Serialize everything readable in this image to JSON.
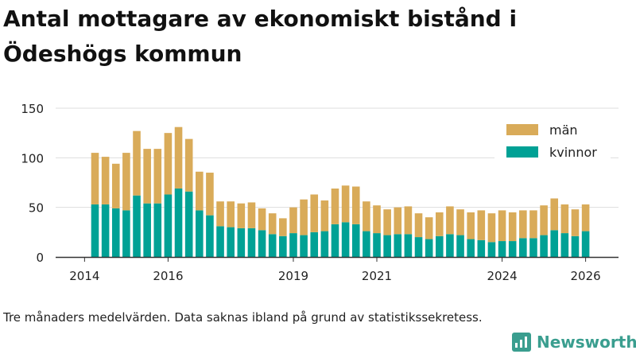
{
  "title": "Antal mottagare av ekonomiskt bistånd i Ödeshögs kommun",
  "caption": "Tre månaders medelvärden. Data saknas ibland på grund av statistikssekretess.",
  "brand": "Newsworthy",
  "colors": {
    "men": "#d9ab59",
    "women": "#00a195",
    "grid": "#dddddd",
    "axis": "#333333"
  },
  "chart_data": {
    "type": "bar",
    "stacked": true,
    "title": "Antal mottagare av ekonomiskt bistånd i Ödeshögs kommun",
    "xlabel": "",
    "ylabel": "",
    "ylim": [
      0,
      150
    ],
    "yticks": [
      0,
      50,
      100,
      150
    ],
    "xticks": [
      "2014",
      "2016",
      "2019",
      "2021",
      "2024",
      "2026"
    ],
    "legend_position": "top-right",
    "x": [
      "2014-04",
      "2014-07",
      "2014-10",
      "2015-01",
      "2015-04",
      "2015-07",
      "2015-10",
      "2016-01",
      "2016-04",
      "2016-07",
      "2016-10",
      "2017-01",
      "2017-04",
      "2017-07",
      "2017-10",
      "2018-01",
      "2018-04",
      "2018-07",
      "2018-10",
      "2019-01",
      "2019-04",
      "2019-07",
      "2019-10",
      "2020-01",
      "2020-04",
      "2020-07",
      "2020-10",
      "2021-01",
      "2021-04",
      "2021-07",
      "2021-10",
      "2022-01",
      "2022-04",
      "2022-07",
      "2022-10",
      "2023-01",
      "2023-04",
      "2023-07",
      "2023-10",
      "2024-01",
      "2024-04",
      "2024-07",
      "2024-10",
      "2025-01",
      "2025-04",
      "2025-07",
      "2025-10",
      "2026-01"
    ],
    "series": [
      {
        "name": "kvinnor",
        "values": [
          53,
          53,
          49,
          47,
          62,
          54,
          54,
          63,
          69,
          66,
          47,
          42,
          31,
          30,
          29,
          29,
          27,
          23,
          21,
          24,
          22,
          25,
          26,
          33,
          35,
          33,
          26,
          24,
          22,
          23,
          23,
          20,
          18,
          21,
          23,
          22,
          18,
          17,
          15,
          16,
          16,
          19,
          19,
          22,
          27,
          24,
          21,
          26
        ]
      },
      {
        "name": "män",
        "values": [
          52,
          48,
          45,
          58,
          65,
          55,
          55,
          62,
          62,
          53,
          39,
          43,
          25,
          26,
          25,
          26,
          22,
          21,
          18,
          26,
          36,
          38,
          31,
          36,
          37,
          38,
          30,
          28,
          26,
          27,
          28,
          24,
          22,
          24,
          28,
          26,
          27,
          30,
          29,
          31,
          29,
          28,
          28,
          30,
          32,
          29,
          27,
          27
        ]
      }
    ]
  }
}
